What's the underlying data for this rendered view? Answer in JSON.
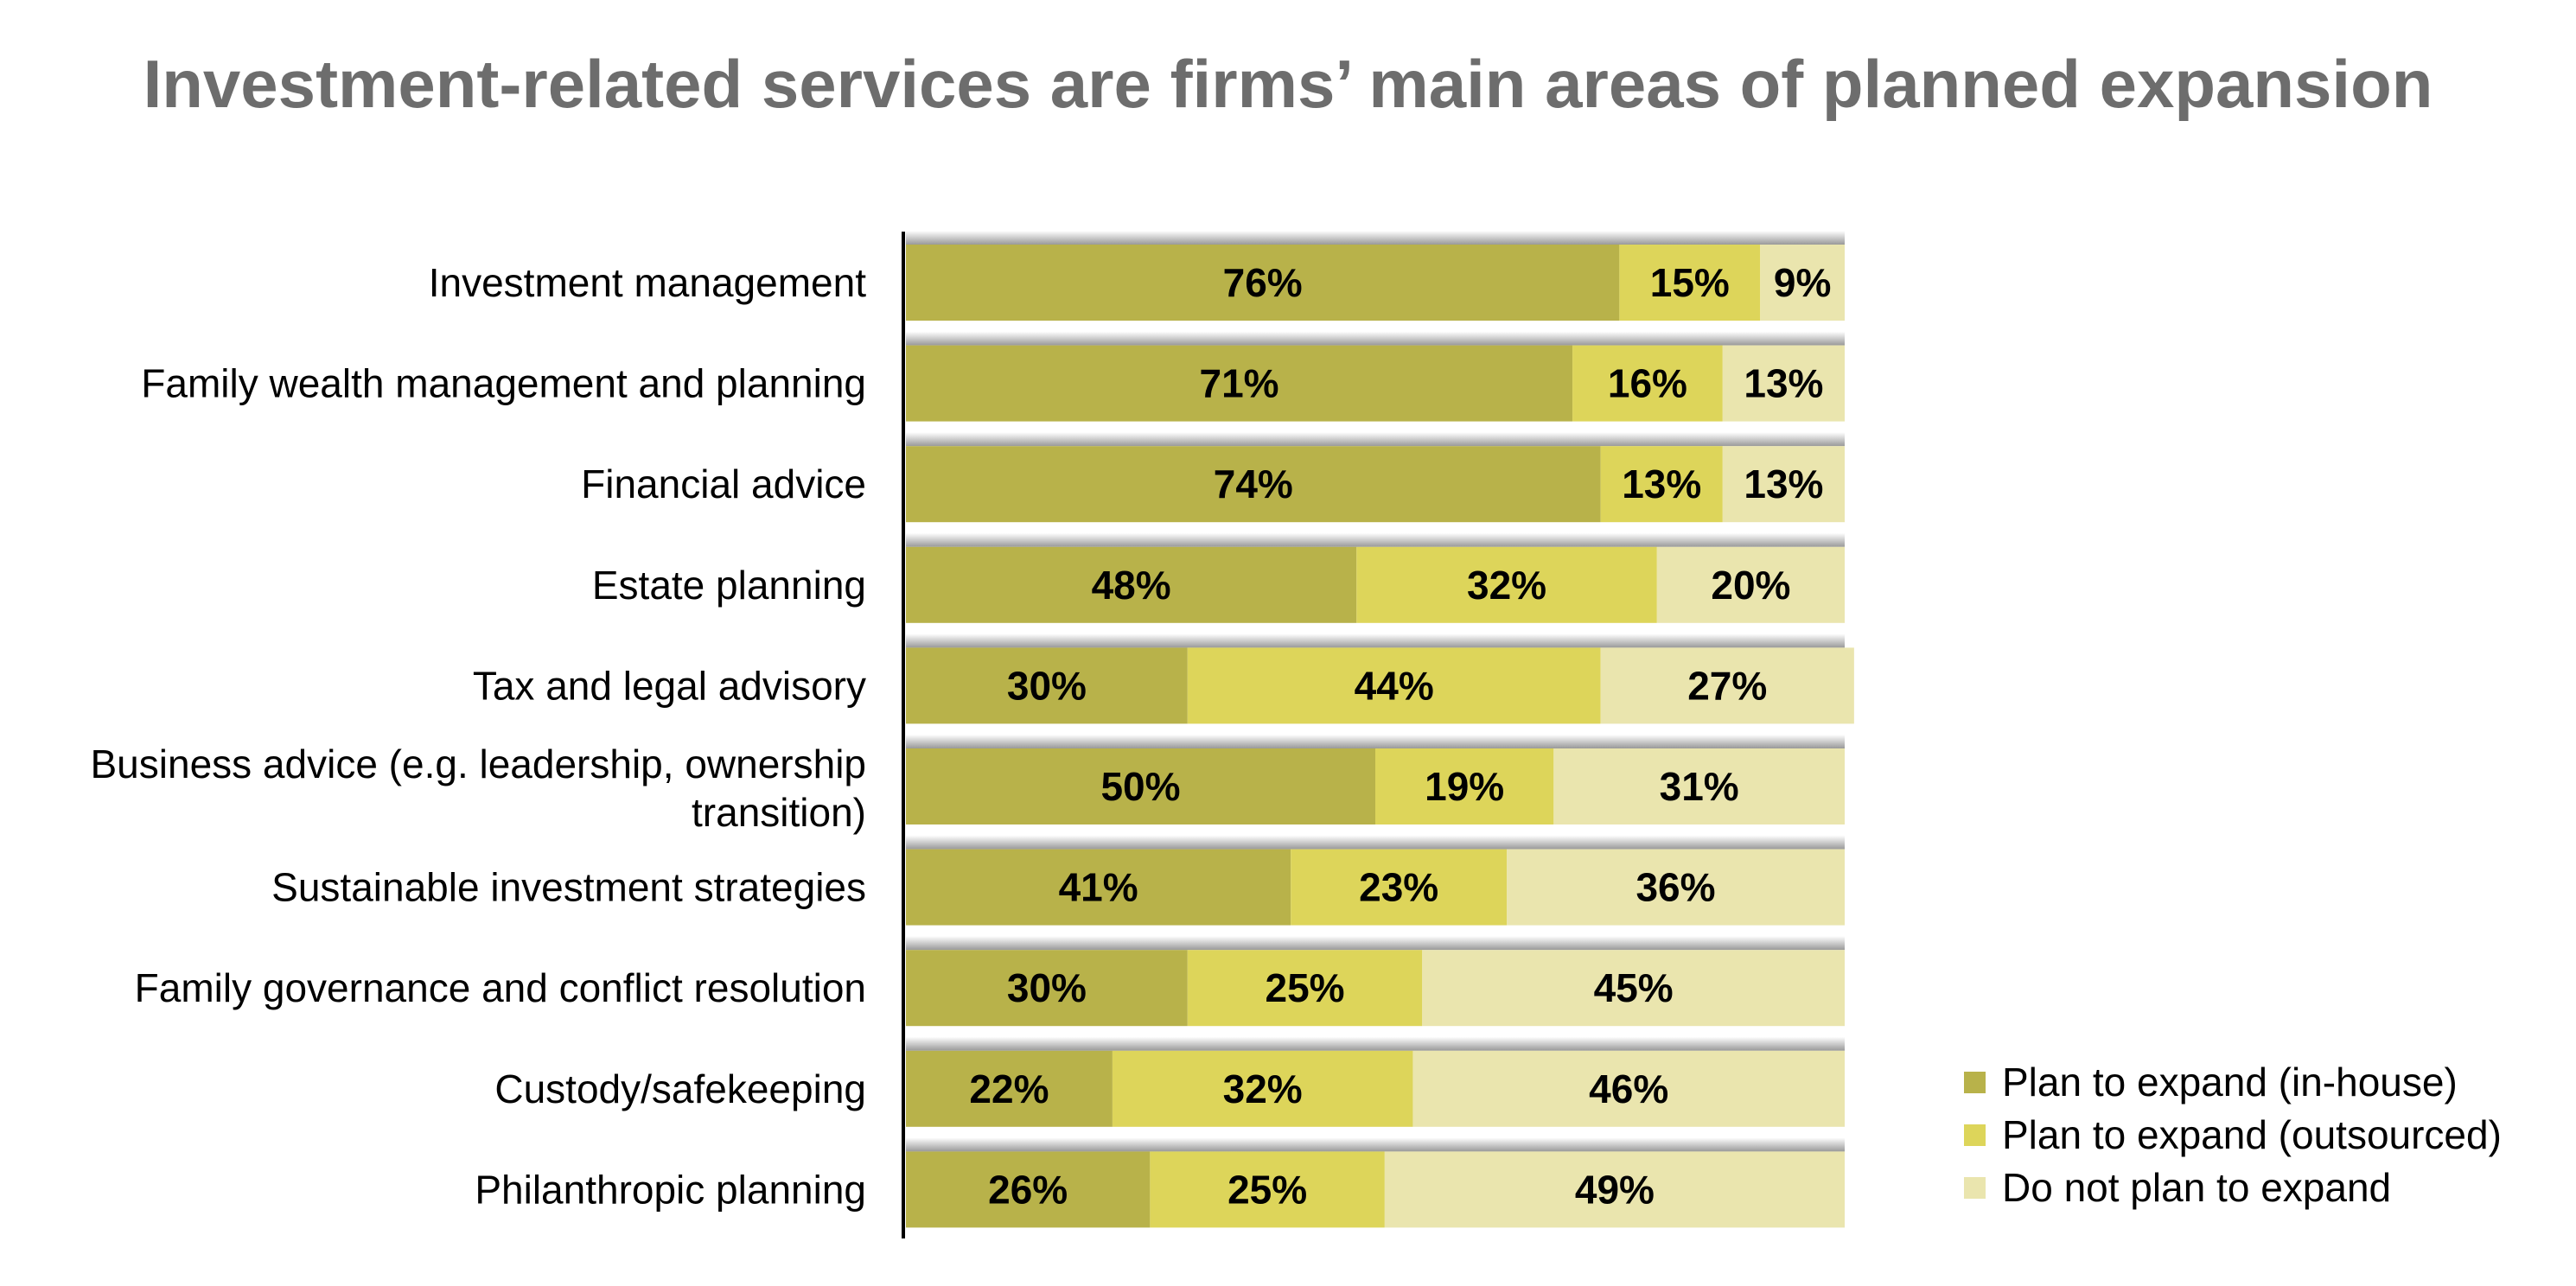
{
  "chart_data": {
    "type": "bar",
    "orientation": "horizontal",
    "stacked": "100%",
    "title": "Investment-related services are firms’ main areas of planned expansion",
    "categories": [
      "Investment management",
      "Family wealth management and planning",
      "Financial advice",
      "Estate planning",
      "Tax and legal advisory",
      "Business advice (e.g. leadership, ownership transition)",
      "Sustainable investment strategies",
      "Family governance and conflict resolution",
      "Custody/safekeeping",
      "Philanthropic planning"
    ],
    "series": [
      {
        "name": "Plan to expand (in-house)",
        "color": "#b8b24a",
        "values": [
          76,
          71,
          74,
          48,
          30,
          50,
          41,
          30,
          22,
          26
        ]
      },
      {
        "name": "Plan to expand (outsourced)",
        "color": "#ddd55a",
        "values": [
          15,
          16,
          13,
          32,
          44,
          19,
          23,
          25,
          32,
          25
        ]
      },
      {
        "name": "Do not plan to expand",
        "color": "#eae5ae",
        "values": [
          9,
          13,
          13,
          20,
          27,
          31,
          36,
          45,
          46,
          49
        ]
      }
    ],
    "value_format": "{v}%",
    "xlim": [
      0,
      100
    ],
    "grid": false,
    "legend": "bottom-right"
  }
}
